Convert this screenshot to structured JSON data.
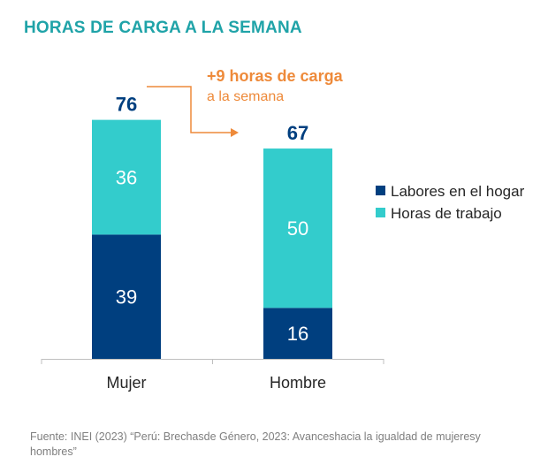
{
  "chart_data": {
    "type": "bar",
    "stacked": true,
    "title": "HORAS DE CARGA A LA SEMANA",
    "categories": [
      "Mujer",
      "Hombre"
    ],
    "series": [
      {
        "name": "Labores en el hogar",
        "values": [
          39,
          16
        ],
        "color": "#003f7f"
      },
      {
        "name": "Horas de trabajo",
        "values": [
          36,
          50
        ],
        "color": "#33cccc"
      }
    ],
    "totals": [
      76,
      67
    ],
    "total_labels": [
      "76",
      "67"
    ],
    "annotation": {
      "line1": "+9 horas de carga",
      "line2": "a la semana",
      "color": "#ee8a3a"
    },
    "legend_position": "right",
    "grid": false,
    "ylim": [
      0,
      76
    ]
  },
  "source": "Fuente: INEI (2023) “Perú: Brechasde Género, 2023: Avanceshacia la igualdad de mujeresy hombres”",
  "colors": {
    "title": "#1fa3a8",
    "total": "#003f7f",
    "label_on_light": "#ffffff",
    "label_on_dark": "#ffffff",
    "axis": "#bfbfbf",
    "text": "#262626"
  }
}
